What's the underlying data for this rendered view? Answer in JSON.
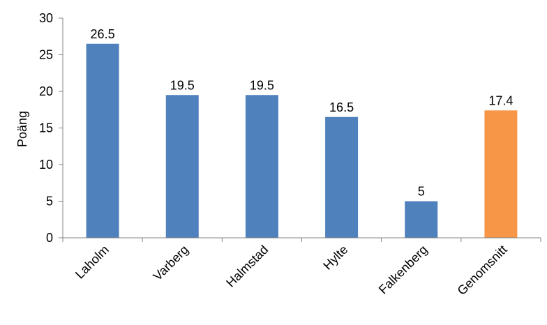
{
  "chart_data": {
    "type": "bar",
    "title": "",
    "xlabel": "",
    "ylabel": "Poäng",
    "categories": [
      "Laholm",
      "Varberg",
      "Halmstad",
      "Hylte",
      "Falkenberg",
      "Genomsnitt"
    ],
    "values": [
      26.5,
      19.5,
      19.5,
      16.5,
      5,
      17.4
    ],
    "value_labels": [
      "26.5",
      "19.5",
      "19.5",
      "16.5",
      "5",
      "17.4"
    ],
    "bar_colors": [
      "#4f81bd",
      "#4f81bd",
      "#4f81bd",
      "#4f81bd",
      "#4f81bd",
      "#f79646"
    ],
    "ylim": [
      0,
      30
    ],
    "yticks": [
      0,
      5,
      10,
      15,
      20,
      25,
      30
    ],
    "grid": false,
    "legend": "none"
  }
}
